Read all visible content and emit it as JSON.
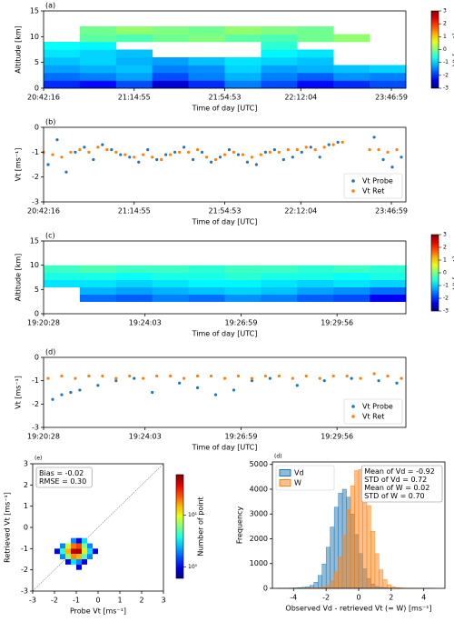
{
  "chart_data": [
    {
      "type": "heatmap",
      "panel_label": "(a)",
      "ylabel": "Altitude [km]",
      "xlabel": "Time of day [UTC]",
      "xlim": [
        0,
        400
      ],
      "xticks": [
        {
          "value": 0,
          "label": "20:42:16"
        },
        {
          "value": 100,
          "label": "21:14:55"
        },
        {
          "value": 200,
          "label": "21:54:53"
        },
        {
          "value": 284,
          "label": "22:12:04"
        },
        {
          "value": 384,
          "label": "23:46:59"
        }
      ],
      "ylim": [
        0,
        15
      ],
      "yticks": [
        0,
        5,
        10,
        15
      ],
      "x_edges": [
        0,
        40,
        80,
        120,
        160,
        200,
        240,
        280,
        320,
        360,
        400
      ],
      "y_edges": [
        0,
        1.5,
        3,
        4.5,
        6,
        7.5,
        9,
        10.5,
        12
      ],
      "values": [
        [
          -2,
          -2.2,
          -1.8,
          -2.5,
          -2,
          -1.5,
          -1.8,
          -2.2,
          -2,
          -1.8
        ],
        [
          -1.6,
          -1.5,
          -1.3,
          -1.8,
          -1.5,
          -1.2,
          -1.5,
          -1.7,
          -1.4,
          -1.5
        ],
        [
          -1.3,
          -1.2,
          -1.1,
          -1.5,
          -1.4,
          -1.0,
          -1.3,
          -1.2,
          -1.1,
          -1.0
        ],
        [
          -1.1,
          -1.0,
          -1.2,
          -1.3,
          -1.1,
          -0.9,
          -1.0,
          -1.1,
          null,
          null
        ],
        [
          -0.9,
          -1.0,
          -1.1,
          null,
          null,
          null,
          -0.8,
          -0.9,
          null,
          null
        ],
        [
          -0.7,
          -0.8,
          null,
          null,
          null,
          null,
          -0.5,
          null,
          null,
          null
        ],
        [
          null,
          -0.2,
          -0.3,
          -0.1,
          0.0,
          -0.2,
          -0.3,
          -0.1,
          0.1,
          null
        ],
        [
          null,
          -0.1,
          0.1,
          0.0,
          -0.1,
          0.1,
          0.0,
          -0.1,
          null,
          null
        ]
      ],
      "colorbar": {
        "label": "Vt [ms⁻¹]",
        "clim": [
          -3,
          3
        ],
        "ticks": [
          3,
          2,
          1,
          0,
          -1,
          -2,
          -3
        ]
      }
    },
    {
      "type": "scatter",
      "panel_label": "(b)",
      "ylabel": "Vt [ms⁻¹]",
      "xlabel": "Time of day [UTC]",
      "xlim": [
        0,
        400
      ],
      "xticks": [
        {
          "value": 0,
          "label": "20:42:16"
        },
        {
          "value": 100,
          "label": "21:14:55"
        },
        {
          "value": 200,
          "label": "21:54:53"
        },
        {
          "value": 284,
          "label": "22:12:04"
        },
        {
          "value": 384,
          "label": "23:46:59"
        }
      ],
      "ylim": [
        -3,
        0
      ],
      "yticks": [
        0,
        -1,
        -2,
        -3
      ],
      "legend": "lower right",
      "series": [
        {
          "name": "Vt Probe",
          "color": "#1f77b4",
          "x": [
            5,
            15,
            25,
            35,
            45,
            55,
            65,
            75,
            85,
            95,
            105,
            115,
            125,
            135,
            145,
            155,
            165,
            175,
            185,
            195,
            205,
            215,
            225,
            235,
            245,
            255,
            265,
            275,
            285,
            295,
            305,
            315,
            325,
            365,
            375,
            385,
            395
          ],
          "values": [
            -1.5,
            -0.5,
            -1.8,
            -1.0,
            -0.8,
            -1.3,
            -0.7,
            -0.9,
            -1.1,
            -1.2,
            -1.4,
            -0.9,
            -1.3,
            -1.1,
            -1.0,
            -0.8,
            -1.3,
            -1.0,
            -1.4,
            -1.2,
            -0.9,
            -1.1,
            -1.4,
            -1.5,
            -1.0,
            -0.9,
            -1.3,
            -1.2,
            -1.0,
            -0.8,
            -1.2,
            -0.7,
            -0.6,
            -0.4,
            -1.3,
            -1.6,
            -1.2
          ]
        },
        {
          "name": "Vt Ret",
          "color": "#ff7f0e",
          "x": [
            0,
            10,
            20,
            30,
            40,
            50,
            60,
            70,
            80,
            90,
            100,
            110,
            120,
            130,
            140,
            150,
            160,
            170,
            180,
            190,
            200,
            210,
            220,
            230,
            240,
            250,
            260,
            270,
            280,
            290,
            300,
            310,
            320,
            330,
            360,
            370,
            380,
            390
          ],
          "values": [
            -1.0,
            -1.1,
            -1.2,
            -1.0,
            -0.9,
            -1.0,
            -0.8,
            -0.9,
            -1.0,
            -1.1,
            -1.2,
            -1.1,
            -1.2,
            -1.3,
            -1.1,
            -1.0,
            -1.0,
            -0.9,
            -1.2,
            -1.3,
            -1.1,
            -1.0,
            -1.1,
            -1.2,
            -1.1,
            -1.0,
            -1.0,
            -0.9,
            -0.9,
            -0.8,
            -0.9,
            -0.8,
            -0.7,
            -0.6,
            -0.9,
            -0.9,
            -1.0,
            -0.9
          ]
        }
      ]
    },
    {
      "type": "heatmap",
      "panel_label": "(c)",
      "ylabel": "Altitude [km]",
      "xlabel": "Time of day [UTC]",
      "xlim": [
        0,
        400
      ],
      "xticks": [
        {
          "value": 0,
          "label": "19:20:28"
        },
        {
          "value": 112,
          "label": "19:24:03"
        },
        {
          "value": 218,
          "label": "19:26:59"
        },
        {
          "value": 324,
          "label": "19:29:56"
        }
      ],
      "ylim": [
        0,
        15
      ],
      "yticks": [
        0,
        5,
        10,
        15
      ],
      "x_edges": [
        0,
        40,
        80,
        120,
        160,
        200,
        240,
        280,
        320,
        360,
        400
      ],
      "y_edges": [
        2.5,
        4,
        5.5,
        7,
        8.5,
        10
      ],
      "values": [
        [
          null,
          -1.6,
          -1.7,
          -1.5,
          -1.6,
          -1.4,
          -1.5,
          -1.7,
          -1.8,
          -2.3
        ],
        [
          null,
          -1.2,
          -1.3,
          -1.2,
          -1.1,
          -1.0,
          -1.1,
          -1.3,
          -1.4,
          -1.6
        ],
        [
          -0.9,
          -0.9,
          -1.0,
          -0.9,
          -0.8,
          -0.8,
          -0.9,
          -1.0,
          -0.9,
          -1.0
        ],
        [
          -0.6,
          -0.6,
          -0.7,
          -0.6,
          -0.6,
          -0.5,
          -0.6,
          -0.6,
          -0.7,
          -0.6
        ],
        [
          -0.4,
          -0.3,
          -0.4,
          -0.4,
          -0.5,
          -0.4,
          -0.4,
          -0.5,
          -0.4,
          -0.5
        ]
      ],
      "colorbar": {
        "label": "Vt [ms⁻¹]",
        "clim": [
          -3,
          3
        ],
        "ticks": [
          3,
          2,
          1,
          0,
          -1,
          -2,
          -3
        ]
      }
    },
    {
      "type": "scatter",
      "panel_label": "(d)",
      "ylabel": "Vt [ms⁻¹]",
      "xlabel": "Time of day [UTC]",
      "xlim": [
        0,
        400
      ],
      "xticks": [
        {
          "value": 0,
          "label": "19:20:28"
        },
        {
          "value": 112,
          "label": "19:24:03"
        },
        {
          "value": 218,
          "label": "19:26:59"
        },
        {
          "value": 324,
          "label": "19:29:56"
        }
      ],
      "ylim": [
        -3,
        0
      ],
      "yticks": [
        0,
        -1,
        -2,
        -3
      ],
      "legend": "lower right",
      "series": [
        {
          "name": "Vt Probe",
          "color": "#1f77b4",
          "x": [
            10,
            20,
            30,
            40,
            60,
            80,
            100,
            120,
            150,
            170,
            190,
            210,
            230,
            250,
            280,
            310,
            340,
            370,
            390
          ],
          "values": [
            -1.8,
            -1.6,
            -1.5,
            -1.4,
            -1.2,
            -1.0,
            -0.9,
            -1.5,
            -1.1,
            -1.3,
            -1.6,
            -1.4,
            -1.0,
            -0.9,
            -1.2,
            -1.0,
            -0.9,
            -1.0,
            -1.1
          ]
        },
        {
          "name": "Vt Ret",
          "color": "#ff7f0e",
          "x": [
            5,
            20,
            35,
            50,
            65,
            80,
            95,
            110,
            125,
            140,
            155,
            170,
            185,
            200,
            215,
            230,
            245,
            260,
            275,
            290,
            305,
            320,
            335,
            350,
            365,
            380,
            395
          ],
          "values": [
            -0.9,
            -0.8,
            -0.9,
            -0.8,
            -0.8,
            -0.9,
            -0.8,
            -0.9,
            -0.8,
            -0.8,
            -0.9,
            -0.8,
            -0.8,
            -0.9,
            -0.8,
            -0.9,
            -0.8,
            -0.8,
            -0.9,
            -0.8,
            -0.9,
            -0.8,
            -0.8,
            -0.9,
            -0.7,
            -0.8,
            -0.9
          ]
        }
      ]
    },
    {
      "type": "hist2d",
      "panel_label": "(e)",
      "xlabel": "Probe Vt [ms⁻¹]",
      "ylabel": "Retrieved Vt [ms⁻¹]",
      "xlim": [
        -3,
        3
      ],
      "xticks": [
        -3,
        -2,
        -1,
        0,
        1,
        2,
        3
      ],
      "ylim": [
        -3,
        3
      ],
      "yticks": [
        -3,
        -2,
        -1,
        0,
        1,
        2,
        3
      ],
      "annotations": [
        "Bias = -0.02",
        "RMSE = 0.30"
      ],
      "cells": [
        {
          "x": [
            -1.25,
            -1.0
          ],
          "y": [
            -0.75,
            -0.5
          ],
          "count": 2
        },
        {
          "x": [
            -1.0,
            -0.75
          ],
          "y": [
            -0.75,
            -0.5
          ],
          "count": 1
        },
        {
          "x": [
            -0.75,
            -0.5
          ],
          "y": [
            -0.75,
            -0.5
          ],
          "count": 3
        },
        {
          "x": [
            -1.75,
            -1.5
          ],
          "y": [
            -1.0,
            -0.75
          ],
          "count": 2
        },
        {
          "x": [
            -1.5,
            -1.25
          ],
          "y": [
            -1.0,
            -0.75
          ],
          "count": 8
        },
        {
          "x": [
            -1.25,
            -1.0
          ],
          "y": [
            -1.0,
            -0.75
          ],
          "count": 20
        },
        {
          "x": [
            -1.0,
            -0.75
          ],
          "y": [
            -1.0,
            -0.75
          ],
          "count": 25
        },
        {
          "x": [
            -0.75,
            -0.5
          ],
          "y": [
            -1.0,
            -0.75
          ],
          "count": 6
        },
        {
          "x": [
            -0.5,
            -0.25
          ],
          "y": [
            -1.0,
            -0.75
          ],
          "count": 2
        },
        {
          "x": [
            -2.0,
            -1.75
          ],
          "y": [
            -1.25,
            -1.0
          ],
          "count": 1
        },
        {
          "x": [
            -1.75,
            -1.5
          ],
          "y": [
            -1.25,
            -1.0
          ],
          "count": 4
        },
        {
          "x": [
            -1.5,
            -1.25
          ],
          "y": [
            -1.25,
            -1.0
          ],
          "count": 15
        },
        {
          "x": [
            -1.25,
            -1.0
          ],
          "y": [
            -1.25,
            -1.0
          ],
          "count": 45
        },
        {
          "x": [
            -1.0,
            -0.75
          ],
          "y": [
            -1.25,
            -1.0
          ],
          "count": 50
        },
        {
          "x": [
            -0.75,
            -0.5
          ],
          "y": [
            -1.25,
            -1.0
          ],
          "count": 12
        },
        {
          "x": [
            -0.5,
            -0.25
          ],
          "y": [
            -1.25,
            -1.0
          ],
          "count": 3
        },
        {
          "x": [
            -0.25,
            0.0
          ],
          "y": [
            -1.25,
            -1.0
          ],
          "count": 1
        },
        {
          "x": [
            -1.75,
            -1.5
          ],
          "y": [
            -1.5,
            -1.25
          ],
          "count": 2
        },
        {
          "x": [
            -1.5,
            -1.25
          ],
          "y": [
            -1.5,
            -1.25
          ],
          "count": 6
        },
        {
          "x": [
            -1.25,
            -1.0
          ],
          "y": [
            -1.5,
            -1.25
          ],
          "count": 18
        },
        {
          "x": [
            -1.0,
            -0.75
          ],
          "y": [
            -1.5,
            -1.25
          ],
          "count": 15
        },
        {
          "x": [
            -0.75,
            -0.5
          ],
          "y": [
            -1.5,
            -1.25
          ],
          "count": 5
        },
        {
          "x": [
            -0.5,
            -0.25
          ],
          "y": [
            -1.5,
            -1.25
          ],
          "count": 2
        },
        {
          "x": [
            -1.5,
            -1.25
          ],
          "y": [
            -1.75,
            -1.5
          ],
          "count": 1
        },
        {
          "x": [
            -1.25,
            -1.0
          ],
          "y": [
            -1.75,
            -1.5
          ],
          "count": 3
        },
        {
          "x": [
            -1.0,
            -0.75
          ],
          "y": [
            -1.75,
            -1.5
          ],
          "count": 2
        },
        {
          "x": [
            -0.75,
            -0.5
          ],
          "y": [
            -1.75,
            -1.5
          ],
          "count": 1
        },
        {
          "x": [
            -1.0,
            -0.75
          ],
          "y": [
            -2.0,
            -1.75
          ],
          "count": 1
        }
      ],
      "colorbar": {
        "label": "Number of point",
        "clim": [
          0.6,
          60
        ],
        "log": true,
        "ticks": [
          {
            "value": 1,
            "label": "10⁰"
          },
          {
            "value": 10,
            "label": "10¹"
          }
        ]
      }
    },
    {
      "type": "histogram",
      "panel_label": "(d)",
      "xlabel": "Observed Vd - retrieved Vt (= W) [ms⁻¹]",
      "ylabel": "Frequency",
      "xlim": [
        -5.3,
        5.3
      ],
      "xticks": [
        -4,
        -2,
        0,
        2,
        4
      ],
      "ylim": [
        0,
        5100
      ],
      "yticks": [
        0,
        1000,
        2000,
        3000,
        4000,
        5000
      ],
      "annotations": [
        "Mean of Vd = -0.92",
        "STD of Vd = 0.72",
        "Mean of W = 0.02",
        "STD of W = 0.70"
      ],
      "bins": [
        -5,
        -4.75,
        -4.5,
        -4.25,
        -4,
        -3.75,
        -3.5,
        -3.25,
        -3,
        -2.75,
        -2.5,
        -2.25,
        -2,
        -1.75,
        -1.5,
        -1.25,
        -1,
        -0.75,
        -0.5,
        -0.25,
        0,
        0.25,
        0.5,
        0.75,
        1,
        1.25,
        1.5,
        1.75,
        2,
        2.25,
        2.5,
        2.75,
        3,
        3.25,
        3.5,
        3.75,
        4,
        4.25,
        4.5,
        4.75,
        5
      ],
      "series": [
        {
          "name": "Vd",
          "color": "#1f77b4",
          "values": [
            5,
            5,
            10,
            15,
            20,
            30,
            40,
            60,
            120,
            250,
            520,
            985,
            1660,
            2475,
            3275,
            3840,
            4000,
            3680,
            3000,
            2170,
            1400,
            790,
            400,
            180,
            80,
            40,
            25,
            15,
            10,
            5,
            5,
            3,
            3,
            2,
            2,
            1,
            1,
            1,
            0,
            0
          ]
        },
        {
          "name": "W",
          "color": "#ff7f0e",
          "values": [
            1,
            1,
            2,
            3,
            4,
            6,
            8,
            10,
            15,
            20,
            30,
            55,
            125,
            300,
            660,
            1270,
            2140,
            3175,
            4140,
            4750,
            4800,
            4260,
            3340,
            2300,
            1400,
            750,
            350,
            145,
            60,
            30,
            20,
            12,
            8,
            5,
            4,
            3,
            2,
            1,
            1,
            0
          ]
        }
      ]
    }
  ]
}
